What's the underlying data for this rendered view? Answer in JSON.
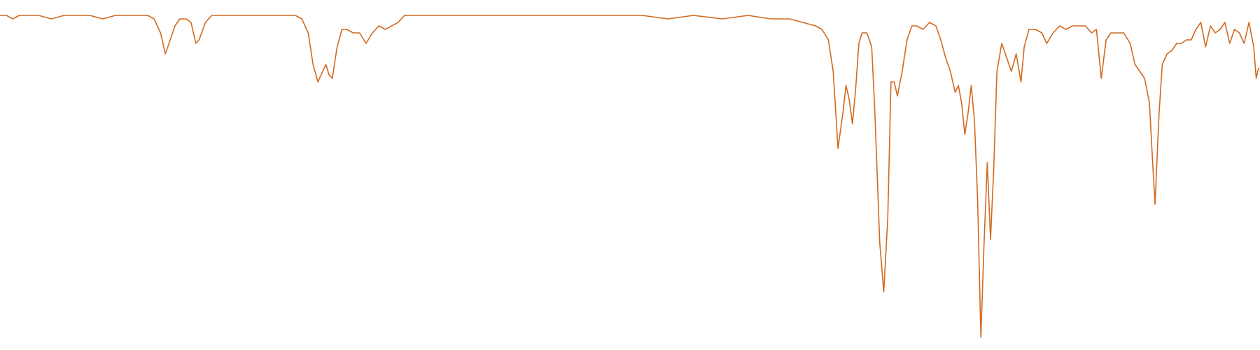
{
  "chart_data": {
    "type": "line",
    "color": "#d2691e",
    "x": [
      0,
      8,
      16,
      24,
      32,
      48,
      64,
      80,
      96,
      112,
      128,
      144,
      160,
      176,
      184,
      192,
      200,
      206,
      212,
      218,
      224,
      232,
      238,
      244,
      248,
      256,
      264,
      272,
      288,
      304,
      320,
      336,
      352,
      368,
      376,
      384,
      390,
      396,
      402,
      406,
      410,
      414,
      420,
      426,
      432,
      440,
      448,
      456,
      464,
      472,
      480,
      488,
      496,
      504,
      536,
      568,
      600,
      632,
      664,
      700,
      732,
      764,
      800,
      832,
      864,
      900,
      932,
      960,
      984,
      1000,
      1016,
      1024,
      1032,
      1038,
      1044,
      1050,
      1054,
      1058,
      1062,
      1066,
      1070,
      1074,
      1080,
      1086,
      1090,
      1096,
      1101,
      1106,
      1110,
      1114,
      1118,
      1124,
      1130,
      1136,
      1142,
      1150,
      1158,
      1166,
      1172,
      1178,
      1184,
      1190,
      1194,
      1198,
      1202,
      1206,
      1210,
      1214,
      1218,
      1222,
      1226,
      1230,
      1234,
      1238,
      1242,
      1248,
      1254,
      1260,
      1266,
      1272,
      1276,
      1282,
      1290,
      1298,
      1304,
      1312,
      1320,
      1328,
      1336,
      1344,
      1352,
      1360,
      1366,
      1372,
      1378,
      1384,
      1392,
      1400,
      1408,
      1414,
      1420,
      1426,
      1432,
      1436,
      1439,
      1444,
      1448,
      1454,
      1460,
      1466,
      1472,
      1478,
      1484,
      1490,
      1496,
      1502,
      1508,
      1514,
      1520,
      1526,
      1532,
      1538,
      1544,
      1550,
      1556,
      1562,
      1565,
      1568
    ],
    "values": [
      95,
      95,
      94,
      95,
      95,
      95,
      94,
      95,
      95,
      95,
      94,
      95,
      95,
      95,
      95,
      94,
      90,
      84,
      88,
      92,
      94,
      94,
      93,
      87,
      88,
      93,
      95,
      95,
      95,
      95,
      95,
      95,
      95,
      95,
      94,
      90,
      81,
      76,
      79,
      81,
      78,
      77,
      86,
      91,
      91,
      90,
      90,
      87,
      90,
      92,
      91,
      92,
      93,
      95,
      95,
      95,
      95,
      95,
      95,
      95,
      95,
      95,
      95,
      94,
      95,
      94,
      95,
      94,
      94,
      93,
      92,
      91,
      88,
      79,
      57,
      67,
      75,
      71,
      64,
      74,
      87,
      90,
      90,
      86,
      67,
      30,
      16,
      37,
      76,
      76,
      72,
      79,
      88,
      92,
      92,
      91,
      93,
      92,
      88,
      83,
      79,
      73,
      75,
      70,
      61,
      67,
      75,
      65,
      42,
      3,
      30,
      53,
      31,
      51,
      79,
      87,
      83,
      79,
      84,
      76,
      86,
      91,
      91,
      90,
      87,
      90,
      92,
      91,
      92,
      92,
      92,
      90,
      91,
      77,
      88,
      90,
      90,
      90,
      87,
      81,
      79,
      77,
      70,
      53,
      41,
      67,
      81,
      84,
      85,
      87,
      87,
      88,
      88,
      91,
      93,
      86,
      92,
      90,
      91,
      93,
      87,
      91,
      90,
      87,
      93,
      86,
      77,
      80
    ]
  }
}
